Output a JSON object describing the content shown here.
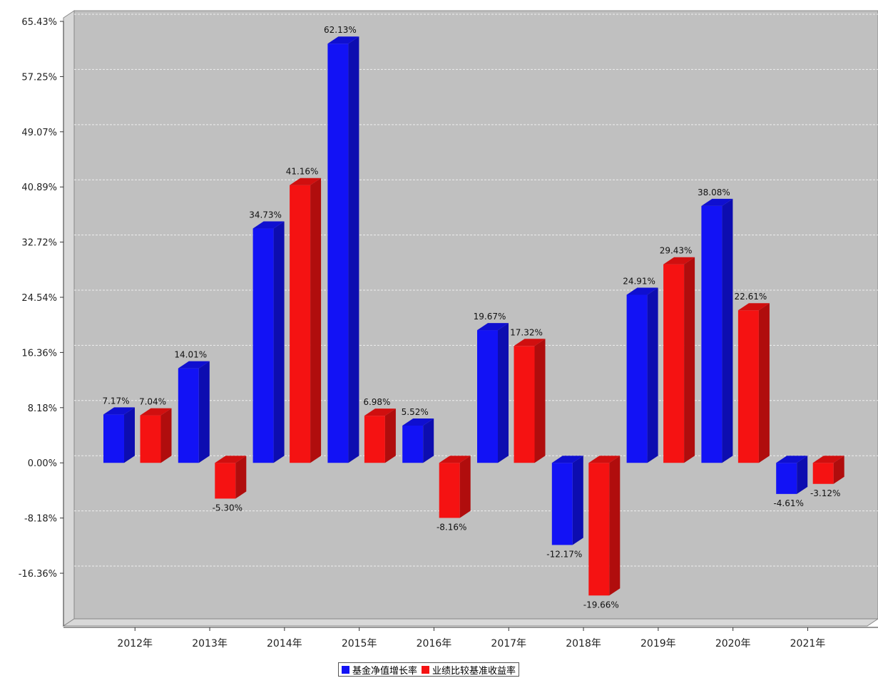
{
  "chart_data": {
    "type": "bar",
    "categories": [
      "2012年",
      "2013年",
      "2014年",
      "2015年",
      "2016年",
      "2017年",
      "2018年",
      "2019年",
      "2020年",
      "2021年"
    ],
    "series": [
      {
        "name": "基金净值增长率",
        "color": "#1212f5",
        "values": [
          7.17,
          14.01,
          34.73,
          62.13,
          5.52,
          19.67,
          -12.17,
          24.91,
          38.08,
          -4.61
        ],
        "labels": [
          "7.17%",
          "14.01%",
          "34.73%",
          "62.13%",
          "5.52%",
          "19.67%",
          "-12.17%",
          "24.91%",
          "38.08%",
          "-4.61%"
        ]
      },
      {
        "name": "业绩比较基准收益率",
        "color": "#f51212",
        "values": [
          7.04,
          -5.3,
          41.16,
          6.98,
          -8.16,
          17.32,
          -19.66,
          29.43,
          22.61,
          -3.12
        ],
        "labels": [
          "7.04%",
          "-5.30%",
          "41.16%",
          "6.98%",
          "-8.16%",
          "17.32%",
          "-19.66%",
          "29.43%",
          "22.61%",
          "-3.12%"
        ]
      }
    ],
    "y_ticks": [
      65.43,
      57.25,
      49.07,
      40.89,
      32.72,
      24.54,
      16.36,
      8.18,
      0.0,
      -8.18,
      -16.36
    ],
    "y_tick_labels": [
      "65.43%",
      "57.25%",
      "49.07%",
      "40.89%",
      "32.72%",
      "24.54%",
      "16.36%",
      "8.18%",
      "0.00%",
      "-8.18%",
      "-16.36%"
    ],
    "ylim": [
      -22.8,
      65.43
    ],
    "grid": true,
    "legend_position": "bottom-center",
    "plot_background": "#c0c0c0"
  }
}
